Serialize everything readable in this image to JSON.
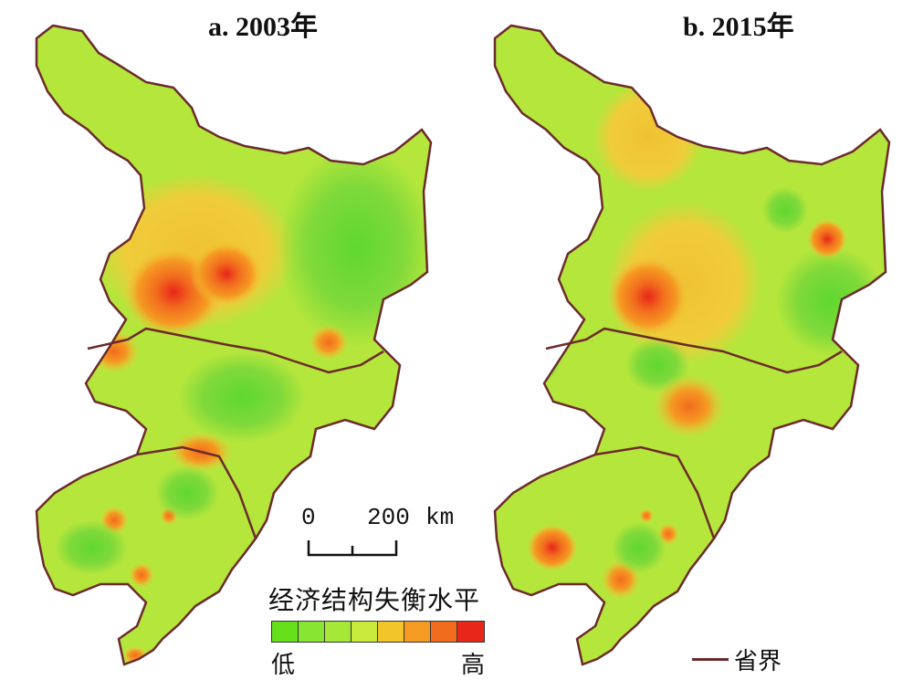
{
  "maps": [
    {
      "id": "a",
      "title": "a. 2003年"
    },
    {
      "id": "b",
      "title": "b. 2015年"
    }
  ],
  "scale": {
    "zero": "0",
    "distance": "200",
    "unit": "km"
  },
  "legend": {
    "title": "经济结构失衡水平",
    "low": "低",
    "high": "高",
    "colors": [
      "#66e01a",
      "#88e632",
      "#a6e838",
      "#c8ea3c",
      "#f2c62a",
      "#f59a22",
      "#f26c1e",
      "#e8261a"
    ]
  },
  "boundary_legend": {
    "label": "省界",
    "color": "#6b2b2b"
  },
  "colors": {
    "base": "#b5e63c",
    "green": "#7fd93a",
    "yellow": "#f0cc3a",
    "orange": "#f29a2a",
    "red": "#e8261a"
  }
}
